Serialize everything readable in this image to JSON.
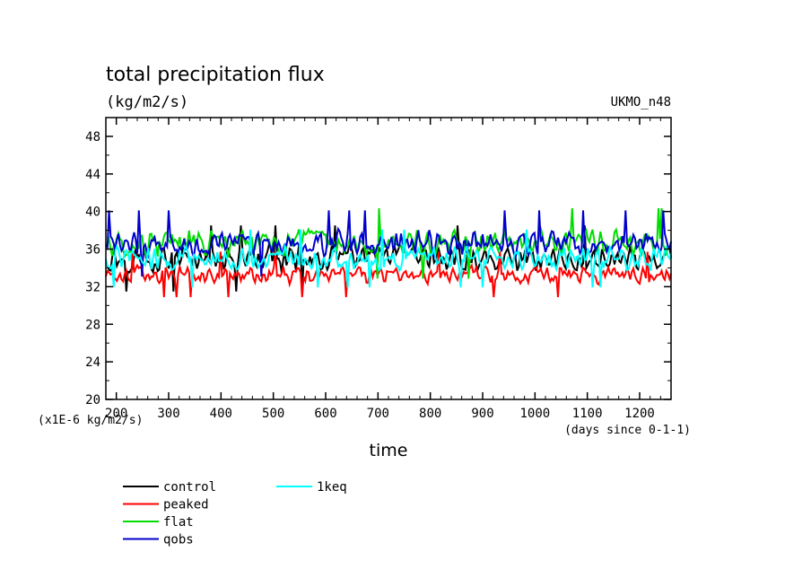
{
  "chart_data": {
    "type": "line",
    "title": "total precipitation flux",
    "units": "(kg/m2/s)",
    "model": "UKMO_n48",
    "xlabel": "time",
    "x_units": "(days since 0-1-1)",
    "y_scale_note": "(x1E-6 kg/m2/s)",
    "xlim": [
      180,
      1260
    ],
    "ylim": [
      20,
      50
    ],
    "x_ticks": [
      200,
      300,
      400,
      500,
      600,
      700,
      800,
      900,
      1000,
      1100,
      1200
    ],
    "x_tick_labels": [
      "200",
      "300",
      "400",
      "500",
      "600",
      "700",
      "800",
      "900",
      "1000",
      "1100",
      "1200"
    ],
    "y_ticks": [
      20,
      24,
      28,
      32,
      36,
      40,
      44,
      48
    ],
    "y_tick_labels": [
      "20",
      "24",
      "28",
      "32",
      "36",
      "40",
      "44",
      "48"
    ],
    "grid": false,
    "legend_position": "bottom-left",
    "series": [
      {
        "name": "control",
        "color": "#000000",
        "mean": 35.0,
        "amp": 1.6,
        "min": 30.8,
        "max": 38.6
      },
      {
        "name": "peaked",
        "color": "#ff0000",
        "mean": 33.3,
        "amp": 1.1,
        "min": 30.4,
        "max": 36.0
      },
      {
        "name": "flat",
        "color": "#00dd00",
        "mean": 36.6,
        "amp": 1.7,
        "min": 32.5,
        "max": 41.3
      },
      {
        "name": "qobs",
        "color": "#0000cc",
        "mean": 36.6,
        "amp": 1.6,
        "min": 32.8,
        "max": 40.8
      },
      {
        "name": "1keq",
        "color": "#00ffff",
        "mean": 35.0,
        "amp": 1.4,
        "min": 31.0,
        "max": 39.8
      }
    ]
  }
}
